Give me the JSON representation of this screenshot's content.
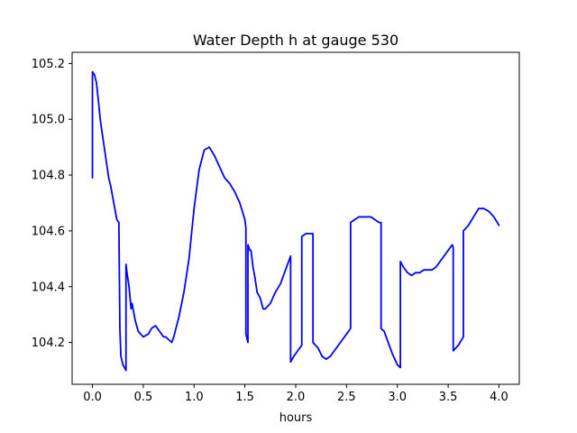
{
  "chart_data": {
    "type": "line",
    "title": "Water Depth h at gauge 530",
    "xlabel": "hours",
    "ylabel": "",
    "xlim": [
      -0.2,
      4.2
    ],
    "ylim": [
      104.05,
      105.24
    ],
    "xticks": [
      0.0,
      0.5,
      1.0,
      1.5,
      2.0,
      2.5,
      3.0,
      3.5,
      4.0
    ],
    "xtick_labels": [
      "0.0",
      "0.5",
      "1.0",
      "1.5",
      "2.0",
      "2.5",
      "3.0",
      "3.5",
      "4.0"
    ],
    "yticks": [
      104.2,
      104.4,
      104.6,
      104.8,
      105.0,
      105.2
    ],
    "ytick_labels": [
      "104.2",
      "104.4",
      "104.6",
      "104.8",
      "105.0",
      "105.2"
    ],
    "grid": false,
    "legend": "none",
    "line_color": "#0000ff",
    "series": [
      {
        "x": [
          0.0,
          0.0,
          0.02,
          0.04,
          0.06,
          0.08,
          0.1,
          0.12,
          0.14,
          0.16,
          0.18,
          0.2,
          0.22,
          0.24,
          0.26,
          0.27,
          0.28,
          0.28,
          0.3,
          0.33,
          0.33,
          0.34,
          0.36,
          0.38,
          0.39,
          0.4,
          0.42,
          0.45,
          0.5,
          0.55,
          0.58,
          0.62,
          0.66,
          0.7,
          0.72,
          0.75,
          0.78,
          0.8,
          0.85,
          0.9,
          0.95,
          1.0,
          1.05,
          1.1,
          1.15,
          1.2,
          1.25,
          1.3,
          1.35,
          1.4,
          1.45,
          1.5,
          1.51,
          1.51,
          1.53,
          1.53,
          1.55,
          1.56,
          1.58,
          1.6,
          1.62,
          1.65,
          1.68,
          1.7,
          1.75,
          1.8,
          1.85,
          1.9,
          1.94,
          1.95,
          1.95,
          1.98,
          2.02,
          2.06,
          2.06,
          2.1,
          2.14,
          2.17,
          2.17,
          2.22,
          2.26,
          2.3,
          2.34,
          2.38,
          2.42,
          2.46,
          2.5,
          2.54,
          2.54,
          2.58,
          2.62,
          2.66,
          2.7,
          2.74,
          2.78,
          2.82,
          2.84,
          2.84,
          2.87,
          2.9,
          2.95,
          3.0,
          3.03,
          3.03,
          3.06,
          3.1,
          3.14,
          3.18,
          3.22,
          3.26,
          3.3,
          3.34,
          3.38,
          3.42,
          3.46,
          3.5,
          3.54,
          3.55,
          3.55,
          3.6,
          3.65,
          3.65,
          3.7,
          3.75,
          3.8,
          3.85,
          3.9,
          3.95,
          4.0
        ],
        "values": [
          104.79,
          105.17,
          105.16,
          105.13,
          105.06,
          104.99,
          104.94,
          104.89,
          104.84,
          104.79,
          104.76,
          104.72,
          104.68,
          104.64,
          104.63,
          104.25,
          104.15,
          104.15,
          104.12,
          104.1,
          104.48,
          104.45,
          104.4,
          104.32,
          104.34,
          104.32,
          104.28,
          104.24,
          104.22,
          104.23,
          104.25,
          104.26,
          104.24,
          104.22,
          104.22,
          104.21,
          104.2,
          104.22,
          104.29,
          104.38,
          104.5,
          104.68,
          104.82,
          104.89,
          104.9,
          104.87,
          104.83,
          104.79,
          104.77,
          104.74,
          104.7,
          104.64,
          104.61,
          104.23,
          104.2,
          104.55,
          104.53,
          104.53,
          104.47,
          104.43,
          104.38,
          104.36,
          104.32,
          104.32,
          104.34,
          104.38,
          104.41,
          104.46,
          104.5,
          104.51,
          104.13,
          104.15,
          104.17,
          104.19,
          104.58,
          104.59,
          104.59,
          104.59,
          104.2,
          104.18,
          104.15,
          104.14,
          104.15,
          104.17,
          104.19,
          104.21,
          104.23,
          104.25,
          104.63,
          104.64,
          104.65,
          104.65,
          104.65,
          104.65,
          104.64,
          104.63,
          104.63,
          104.25,
          104.24,
          104.21,
          104.16,
          104.12,
          104.11,
          104.49,
          104.47,
          104.45,
          104.44,
          104.45,
          104.45,
          104.46,
          104.46,
          104.46,
          104.47,
          104.49,
          104.51,
          104.53,
          104.55,
          104.54,
          104.17,
          104.19,
          104.22,
          104.6,
          104.62,
          104.65,
          104.68,
          104.68,
          104.67,
          104.65,
          104.62
        ]
      }
    ]
  }
}
